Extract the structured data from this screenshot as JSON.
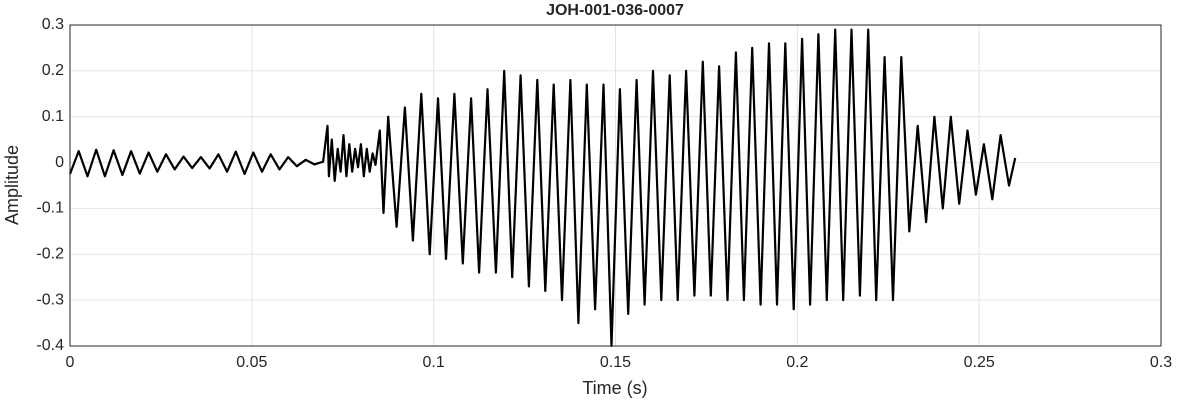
{
  "chart_data": {
    "type": "line",
    "title": "JOH-001-036-0007",
    "x_label": "Time (s)",
    "y_label": "Amplitude",
    "color": "#000000",
    "grid": true,
    "xlim": [
      0,
      0.3
    ],
    "ylim": [
      -0.4,
      0.3
    ],
    "xticks": [
      0,
      0.05,
      0.1,
      0.15,
      0.2,
      0.25,
      0.3
    ],
    "yticks": [
      0.3,
      0.2,
      0.1,
      0,
      -0.1,
      -0.2,
      -0.3,
      -0.4
    ],
    "x": [
      0,
      0.0024,
      0.0048,
      0.0072,
      0.0096,
      0.012,
      0.0144,
      0.0168,
      0.0192,
      0.0216,
      0.024,
      0.0264,
      0.0288,
      0.0312,
      0.0336,
      0.036,
      0.0384,
      0.0408,
      0.0432,
      0.0456,
      0.048,
      0.0504,
      0.0528,
      0.0552,
      0.0576,
      0.06,
      0.0624,
      0.0648,
      0.0672,
      0.0696,
      0.0708,
      0.0712,
      0.072,
      0.0728,
      0.0736,
      0.0744,
      0.0752,
      0.076,
      0.0768,
      0.0776,
      0.0784,
      0.0792,
      0.08,
      0.0808,
      0.0816,
      0.0824,
      0.0832,
      0.084,
      0.0852,
      0.0862,
      0.0875,
      0.0898,
      0.0921,
      0.0943,
      0.0966,
      0.0989,
      0.1012,
      0.1034,
      0.1057,
      0.108,
      0.1103,
      0.1125,
      0.1148,
      0.1171,
      0.1194,
      0.1216,
      0.1239,
      0.1262,
      0.1285,
      0.1307,
      0.133,
      0.1353,
      0.1376,
      0.1398,
      0.1421,
      0.1444,
      0.1467,
      0.1489,
      0.1512,
      0.1535,
      0.1558,
      0.158,
      0.1603,
      0.1626,
      0.1649,
      0.1671,
      0.1694,
      0.1717,
      0.174,
      0.1762,
      0.1785,
      0.1808,
      0.1831,
      0.1853,
      0.1876,
      0.1899,
      0.1922,
      0.1944,
      0.1967,
      0.199,
      0.2013,
      0.2035,
      0.2058,
      0.2081,
      0.2104,
      0.2126,
      0.2149,
      0.2172,
      0.2195,
      0.2217,
      0.224,
      0.2263,
      0.2286,
      0.2308,
      0.2331,
      0.2354,
      0.2377,
      0.24,
      0.2422,
      0.2445,
      0.2468,
      0.2491,
      0.2513,
      0.2536,
      0.2559,
      0.2582,
      0.2599
    ],
    "values": [
      -0.025,
      0.025,
      -0.03,
      0.028,
      -0.03,
      0.027,
      -0.027,
      0.025,
      -0.024,
      0.022,
      -0.02,
      0.018,
      -0.015,
      0.013,
      -0.012,
      0.012,
      -0.013,
      0.018,
      -0.02,
      0.024,
      -0.025,
      0.022,
      -0.02,
      0.018,
      -0.015,
      0.012,
      -0.008,
      0.006,
      -0.004,
      0.002,
      0.08,
      -0.03,
      0.05,
      -0.04,
      0.03,
      -0.02,
      0.06,
      -0.03,
      0.04,
      -0.02,
      0.03,
      -0.01,
      0.04,
      -0.03,
      0.03,
      -0.02,
      0.02,
      -0.005,
      0.07,
      -0.11,
      0.1,
      -0.14,
      0.12,
      -0.17,
      0.15,
      -0.2,
      0.14,
      -0.21,
      0.15,
      -0.22,
      0.14,
      -0.24,
      0.16,
      -0.24,
      0.2,
      -0.25,
      0.19,
      -0.27,
      0.18,
      -0.28,
      0.17,
      -0.3,
      0.18,
      -0.35,
      0.17,
      -0.32,
      0.17,
      -0.4,
      0.16,
      -0.33,
      0.18,
      -0.31,
      0.2,
      -0.3,
      0.19,
      -0.3,
      0.2,
      -0.29,
      0.22,
      -0.29,
      0.21,
      -0.3,
      0.24,
      -0.3,
      0.25,
      -0.31,
      0.26,
      -0.31,
      0.26,
      -0.32,
      0.27,
      -0.31,
      0.28,
      -0.3,
      0.29,
      -0.3,
      0.29,
      -0.29,
      0.29,
      -0.3,
      0.23,
      -0.3,
      0.23,
      -0.15,
      0.08,
      -0.13,
      0.1,
      -0.1,
      0.1,
      -0.09,
      0.07,
      -0.07,
      0.04,
      -0.08,
      0.06,
      -0.05,
      0.01
    ]
  }
}
